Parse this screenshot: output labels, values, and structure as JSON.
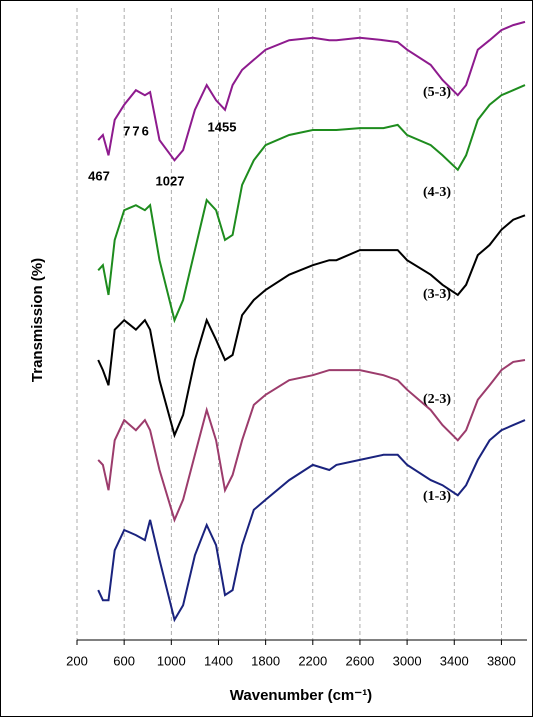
{
  "chart_data": {
    "type": "line",
    "x_label": "Wavenumber (cm⁻¹)",
    "y_label": "Transmission (%)",
    "annotations": [
      "467",
      "776",
      "1027",
      "1455"
    ],
    "xlim": [
      200,
      4000
    ],
    "xticks": [
      200,
      600,
      1000,
      1400,
      1800,
      2200,
      2600,
      3000,
      3400,
      3800
    ],
    "ylim": [
      0,
      100
    ],
    "grid": true,
    "x": [
      380,
      420,
      467,
      520,
      600,
      700,
      776,
      820,
      900,
      1027,
      1100,
      1200,
      1300,
      1380,
      1455,
      1520,
      1600,
      1700,
      1800,
      2000,
      2200,
      2340,
      2400,
      2600,
      2800,
      2920,
      3000,
      3200,
      3300,
      3430,
      3500,
      3600,
      3700,
      3800,
      3900,
      4000
    ],
    "series": [
      {
        "name": "(5-3)",
        "color": "#8e1b8e",
        "values": [
          79.1,
          79.9,
          76.7,
          82.3,
          84.7,
          87.0,
          86.2,
          86.7,
          79.1,
          75.9,
          77.5,
          83.9,
          87.8,
          85.4,
          83.9,
          87.8,
          90.2,
          91.8,
          93.4,
          94.9,
          95.3,
          94.9,
          94.9,
          95.3,
          94.9,
          94.6,
          93.4,
          91.0,
          88.6,
          86.2,
          87.8,
          93.4,
          94.9,
          96.5,
          97.3,
          97.8
        ]
      },
      {
        "name": "(4-3)",
        "color": "#1e8c1e",
        "values": [
          58.5,
          59.3,
          54.6,
          63.3,
          68.0,
          68.8,
          68.0,
          68.8,
          60.1,
          50.6,
          53.8,
          61.7,
          69.6,
          68.0,
          63.3,
          64.1,
          72.0,
          75.9,
          78.3,
          79.9,
          80.7,
          80.7,
          80.7,
          81.0,
          81.0,
          81.5,
          79.9,
          78.3,
          76.7,
          74.4,
          76.7,
          82.3,
          84.7,
          86.2,
          87.0,
          87.8
        ]
      },
      {
        "name": "(3-3)",
        "color": "#000000",
        "values": [
          44.3,
          42.7,
          40.3,
          49.1,
          50.6,
          49.1,
          50.6,
          49.1,
          41.1,
          32.4,
          35.6,
          44.3,
          50.6,
          47.5,
          44.3,
          45.1,
          51.4,
          53.8,
          55.4,
          57.8,
          59.3,
          60.1,
          60.1,
          61.7,
          61.7,
          61.7,
          60.1,
          57.8,
          56.2,
          54.6,
          56.2,
          60.9,
          62.5,
          64.9,
          66.5,
          67.2
        ]
      },
      {
        "name": "(2-3)",
        "color": "#9c3c6c",
        "values": [
          28.5,
          27.7,
          23.7,
          31.6,
          34.8,
          33.2,
          34.8,
          33.2,
          26.9,
          19.0,
          22.2,
          29.3,
          36.4,
          31.6,
          23.7,
          26.1,
          31.6,
          37.2,
          38.8,
          41.1,
          41.9,
          42.7,
          42.7,
          42.7,
          41.9,
          41.1,
          39.6,
          36.4,
          34.0,
          31.6,
          33.2,
          38.0,
          40.3,
          42.7,
          44.0,
          44.3
        ]
      },
      {
        "name": "(1-3)",
        "color": "#1a237e",
        "values": [
          7.9,
          6.3,
          6.3,
          14.2,
          17.4,
          16.6,
          15.8,
          19.0,
          12.7,
          3.2,
          5.5,
          13.4,
          18.2,
          15.0,
          7.1,
          7.9,
          15.0,
          20.6,
          22.2,
          25.3,
          27.7,
          26.9,
          27.7,
          28.5,
          29.3,
          29.3,
          27.7,
          25.3,
          24.5,
          22.9,
          24.5,
          28.5,
          31.6,
          33.2,
          34.0,
          34.8
        ]
      }
    ]
  }
}
